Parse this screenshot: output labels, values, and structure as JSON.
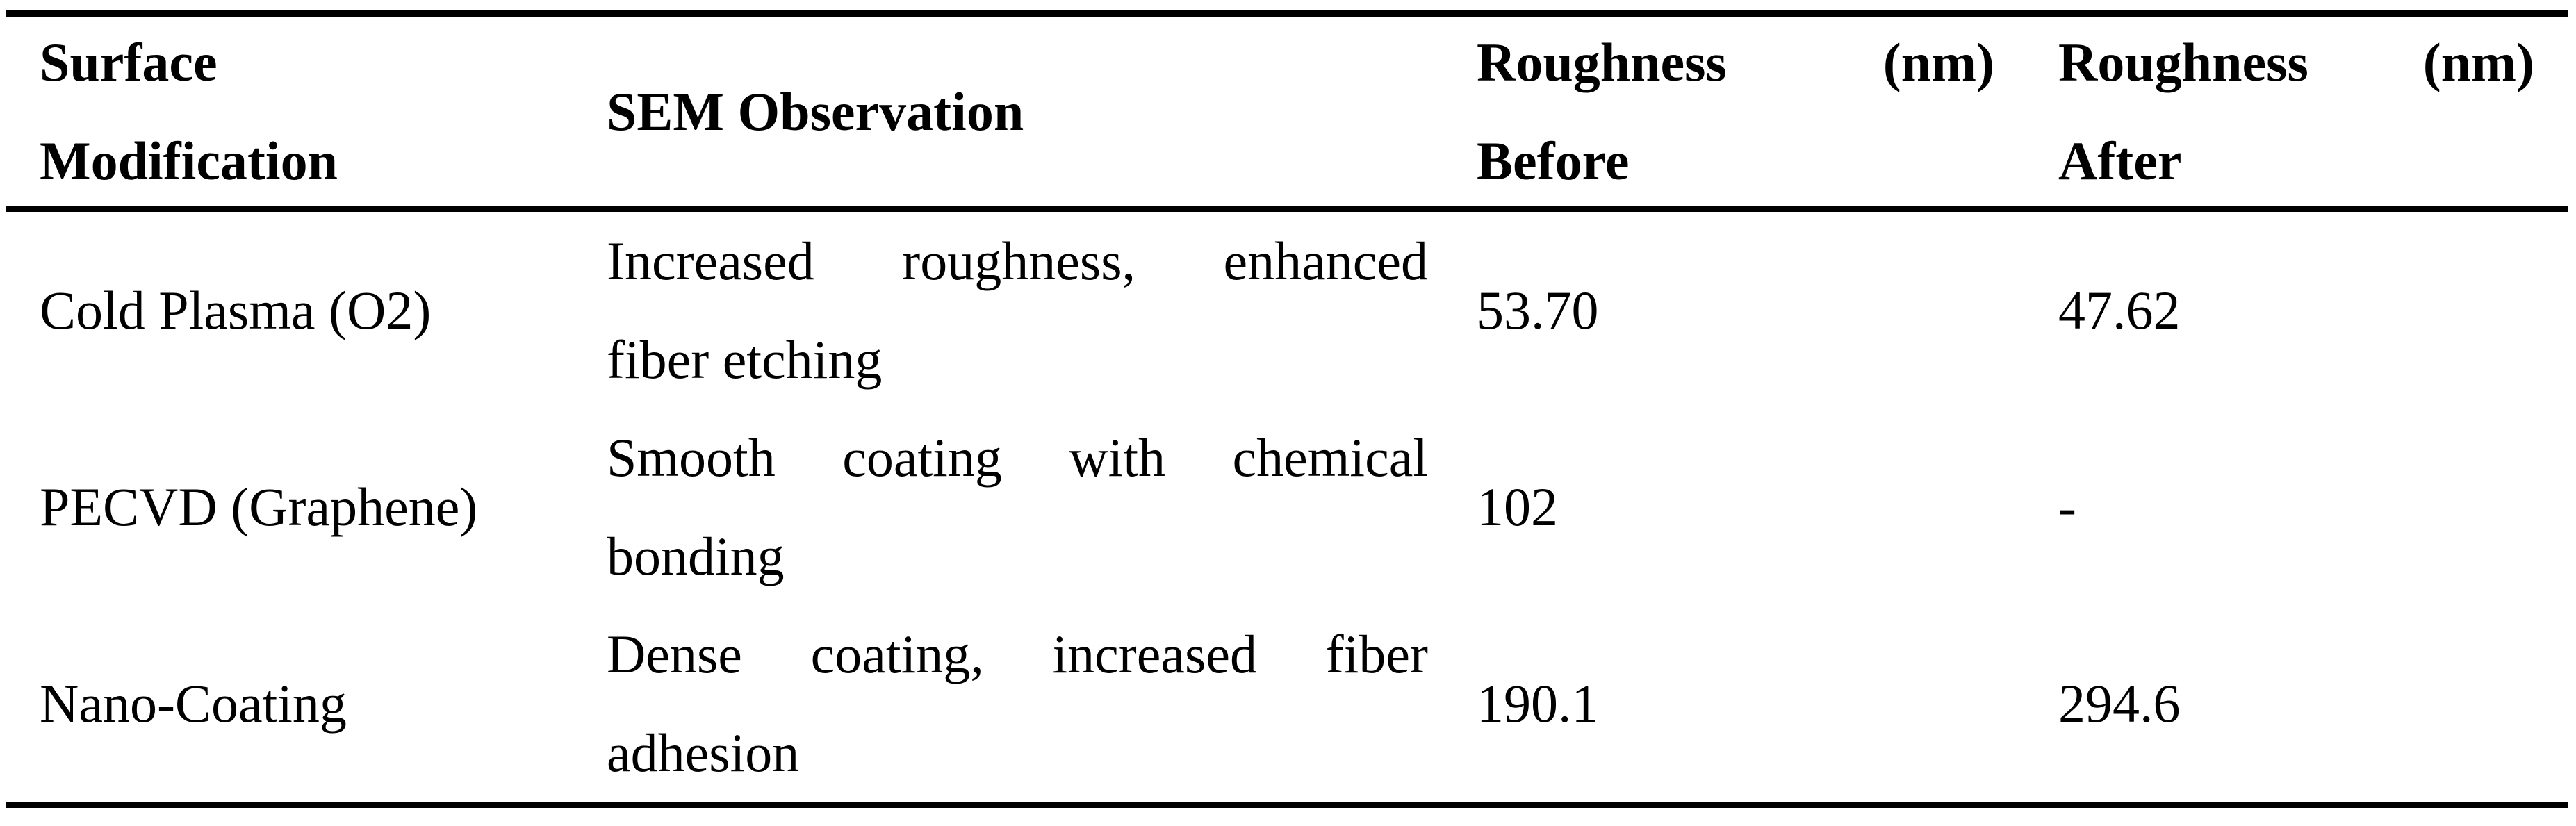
{
  "page": {
    "background_color": "#ffffff",
    "text_color": "#000000",
    "rule_color": "#000000"
  },
  "table": {
    "header": {
      "surface_modification": {
        "line1": "Surface",
        "line2": "Modification"
      },
      "sem_observation": {
        "label": "SEM Observation"
      },
      "roughness_before": {
        "line1": "Roughness (nm)",
        "line2": "Before"
      },
      "roughness_after": {
        "line1": "Roughness (nm)",
        "line2": "After"
      }
    },
    "rows": [
      {
        "modification": "Cold Plasma (O2)",
        "sem_line1": "Increased roughness, enhanced",
        "sem_line2": "fiber etching",
        "roughness_before": "53.70",
        "roughness_after": "47.62"
      },
      {
        "modification": "PECVD (Graphene)",
        "sem_line1": "Smooth coating with chemical",
        "sem_line2": "bonding",
        "roughness_before": "102",
        "roughness_after": "-"
      },
      {
        "modification": "Nano-Coating",
        "sem_line1": "Dense coating, increased fiber",
        "sem_line2": "adhesion",
        "roughness_before": "190.1",
        "roughness_after": "294.6"
      }
    ]
  }
}
